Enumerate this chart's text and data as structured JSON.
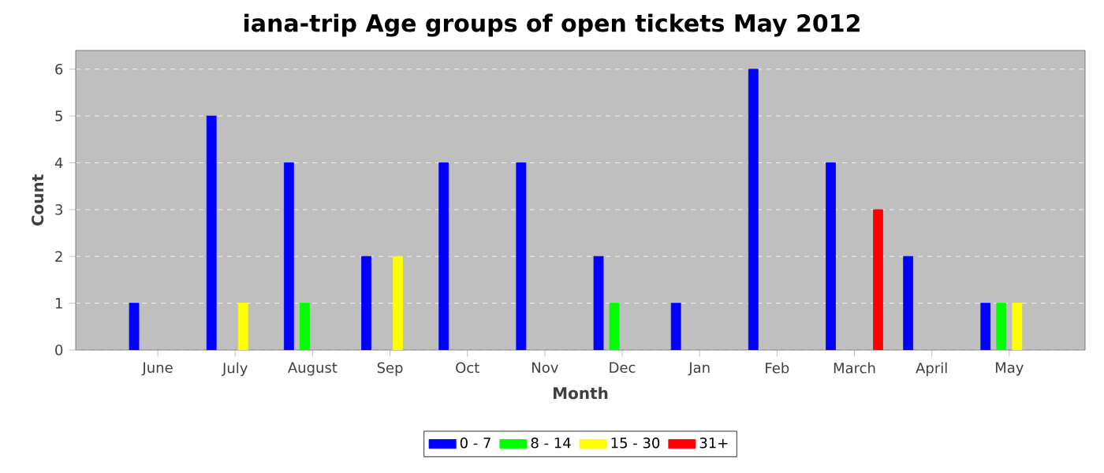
{
  "chart_data": {
    "type": "bar",
    "title": "iana-trip Age groups of open tickets May 2012",
    "xlabel": "Month",
    "ylabel": "Count",
    "categories": [
      "June",
      "July",
      "August",
      "Sep",
      "Oct",
      "Nov",
      "Dec",
      "Jan",
      "Feb",
      "March",
      "April",
      "May"
    ],
    "series": [
      {
        "name": "0 - 7",
        "color": "#0000ff",
        "values": [
          1,
          5,
          4,
          2,
          4,
          4,
          2,
          1,
          6,
          4,
          2,
          1
        ]
      },
      {
        "name": "8 - 14",
        "color": "#00ff00",
        "values": [
          null,
          null,
          1,
          null,
          null,
          null,
          1,
          null,
          null,
          null,
          null,
          1
        ]
      },
      {
        "name": "15 - 30",
        "color": "#ffff00",
        "values": [
          null,
          1,
          null,
          2,
          null,
          null,
          null,
          null,
          null,
          null,
          null,
          1
        ]
      },
      {
        "name": "31+",
        "color": "#ff0000",
        "values": [
          null,
          null,
          null,
          null,
          null,
          null,
          null,
          null,
          null,
          3,
          null,
          null
        ]
      }
    ],
    "ylim": [
      0,
      6.4
    ],
    "yticks": [
      0,
      1,
      2,
      3,
      4,
      5,
      6
    ],
    "grid": "y",
    "legend": "bottom"
  }
}
